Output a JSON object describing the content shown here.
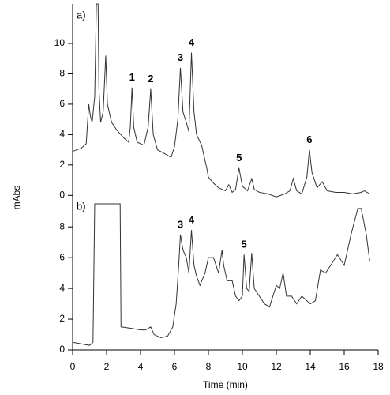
{
  "chart_data": [
    {
      "type": "line",
      "label": "a)",
      "ylabel": "mAbs",
      "color": "#333333",
      "xlim": [
        0,
        18
      ],
      "ylim": [
        -0.4,
        12.6
      ],
      "yticks": [
        0,
        2,
        4,
        6,
        8,
        10
      ],
      "x": [
        0,
        0.5,
        0.8,
        0.95,
        1.05,
        1.15,
        1.3,
        1.4,
        1.5,
        1.55,
        1.65,
        1.8,
        1.95,
        2.05,
        2.3,
        2.6,
        3.0,
        3.3,
        3.4,
        3.5,
        3.6,
        3.8,
        4.2,
        4.45,
        4.6,
        4.75,
        5.0,
        5.5,
        5.8,
        6.0,
        6.2,
        6.35,
        6.5,
        6.7,
        6.85,
        7.0,
        7.15,
        7.3,
        7.6,
        7.9,
        8.0,
        8.3,
        8.6,
        9.0,
        9.2,
        9.4,
        9.6,
        9.8,
        10.0,
        10.3,
        10.55,
        10.7,
        11.0,
        11.5,
        12.0,
        12.5,
        12.8,
        13.0,
        13.2,
        13.5,
        13.8,
        13.95,
        14.1,
        14.4,
        14.7,
        15.0,
        15.5,
        16.0,
        16.5,
        17.0,
        17.2,
        17.5
      ],
      "values": [
        2.9,
        3.1,
        3.4,
        6.0,
        5.2,
        4.8,
        6.5,
        12.6,
        12.6,
        7,
        4.8,
        5.5,
        9.2,
        6.0,
        4.8,
        4.3,
        3.8,
        3.5,
        4.5,
        7.1,
        4.5,
        3.5,
        3.3,
        4.5,
        7.0,
        4.0,
        3.0,
        2.7,
        2.5,
        3.2,
        5,
        8.4,
        5.5,
        4.8,
        4.2,
        9.4,
        5.5,
        4.0,
        3.3,
        1.8,
        1.2,
        0.8,
        0.5,
        0.3,
        0.7,
        0.2,
        0.4,
        1.8,
        0.6,
        0.3,
        1.1,
        0.4,
        0.2,
        0.1,
        -0.1,
        0.1,
        0.3,
        1.1,
        0.3,
        0.1,
        1.2,
        3.0,
        1.5,
        0.5,
        0.9,
        0.3,
        0.2,
        0.2,
        0.1,
        0.2,
        0.3,
        0.1
      ],
      "annotations": [
        {
          "text": "1",
          "x": 3.5
        },
        {
          "text": "2",
          "x": 4.6
        },
        {
          "text": "3",
          "x": 6.35
        },
        {
          "text": "4",
          "x": 7.0
        },
        {
          "text": "5",
          "x": 9.8
        },
        {
          "text": "6",
          "x": 13.95
        }
      ]
    },
    {
      "type": "line",
      "label": "b)",
      "xlabel": "Time (min)",
      "color": "#333333",
      "xlim": [
        0,
        18
      ],
      "xticks": [
        0,
        2,
        4,
        6,
        8,
        10,
        12,
        14,
        16,
        18
      ],
      "ylim": [
        0,
        9.5
      ],
      "yticks": [
        0,
        2,
        4,
        6,
        8
      ],
      "x": [
        0,
        0.5,
        1.0,
        1.2,
        1.3,
        2.8,
        2.85,
        3.5,
        4.0,
        4.3,
        4.6,
        4.8,
        5.2,
        5.6,
        5.9,
        6.1,
        6.25,
        6.35,
        6.5,
        6.7,
        6.85,
        7.0,
        7.15,
        7.3,
        7.5,
        7.8,
        8.0,
        8.3,
        8.6,
        8.8,
        8.9,
        9.1,
        9.4,
        9.6,
        9.8,
        10.0,
        10.1,
        10.25,
        10.4,
        10.55,
        10.7,
        11.0,
        11.3,
        11.6,
        11.8,
        12.0,
        12.2,
        12.4,
        12.6,
        12.9,
        13.2,
        13.5,
        13.8,
        14.0,
        14.3,
        14.6,
        14.9,
        15.2,
        15.6,
        16.0,
        16.4,
        16.8,
        17.0,
        17.3,
        17.5
      ],
      "values": [
        0.5,
        0.4,
        0.3,
        0.5,
        9.5,
        9.5,
        1.5,
        1.4,
        1.3,
        1.3,
        1.5,
        1.0,
        0.8,
        0.9,
        1.5,
        3,
        5.5,
        7.5,
        6.5,
        6.0,
        5.0,
        7.8,
        5.5,
        4.8,
        4.2,
        5.0,
        6.0,
        6.0,
        5.0,
        6.5,
        5.5,
        4.5,
        4.5,
        3.5,
        3.2,
        3.5,
        6.2,
        4.0,
        3.8,
        6.3,
        4.0,
        3.5,
        3.0,
        2.8,
        3.5,
        4.2,
        4.0,
        5.0,
        3.5,
        3.5,
        3.0,
        3.5,
        3.2,
        3.0,
        3.2,
        5.2,
        5.0,
        5.5,
        6.2,
        5.5,
        7.5,
        9.2,
        9.2,
        7.5,
        5.8
      ],
      "annotations": [
        {
          "text": "3",
          "x": 6.35
        },
        {
          "text": "4",
          "x": 7.0
        },
        {
          "text": "5",
          "x": 10.1
        }
      ]
    }
  ]
}
